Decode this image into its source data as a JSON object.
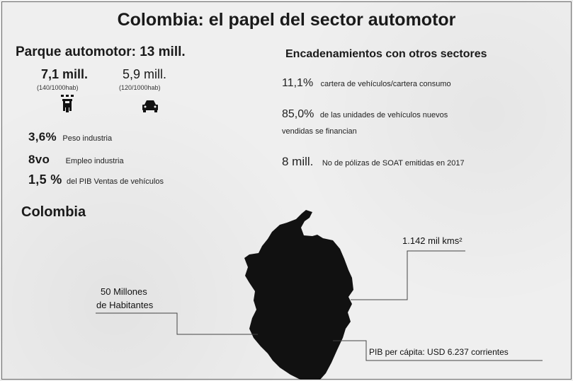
{
  "title": "Colombia: el papel del sector automotor",
  "parque": {
    "heading": "Parque automotor: 13 mill.",
    "motos": {
      "value": "7,1 mill.",
      "ratio": "(140/1000hab)",
      "icon": "motorcycle-icon"
    },
    "autos": {
      "value": "5,9 mill.",
      "ratio": "(120/1000hab)",
      "icon": "car-icon"
    }
  },
  "stats": [
    {
      "value": "3,6%",
      "desc": "Peso industria"
    },
    {
      "value": "8vo",
      "desc": "Empleo industria"
    },
    {
      "value": "1,5 %",
      "desc": "del PIB  Ventas de vehículos"
    }
  ],
  "encadenamientos": {
    "heading": "Encadenamientos con otros sectores",
    "items": [
      {
        "value": "11,1%",
        "desc": "cartera de vehículos/cartera consumo"
      },
      {
        "value": "85,0%",
        "desc": "de las unidades de vehículos nuevos",
        "desc2": "vendidas se financian"
      },
      {
        "value": "8 mill.",
        "desc": "No de pólizas de SOAT emitidas en 2017"
      }
    ]
  },
  "map": {
    "heading": "Colombia",
    "area": "1.142 mil kms²",
    "population_line1": "50 Millones",
    "population_line2": "de Habitantes",
    "pib": "PIB per cápita: USD 6.237 corrientes",
    "fill_color": "#111111"
  }
}
